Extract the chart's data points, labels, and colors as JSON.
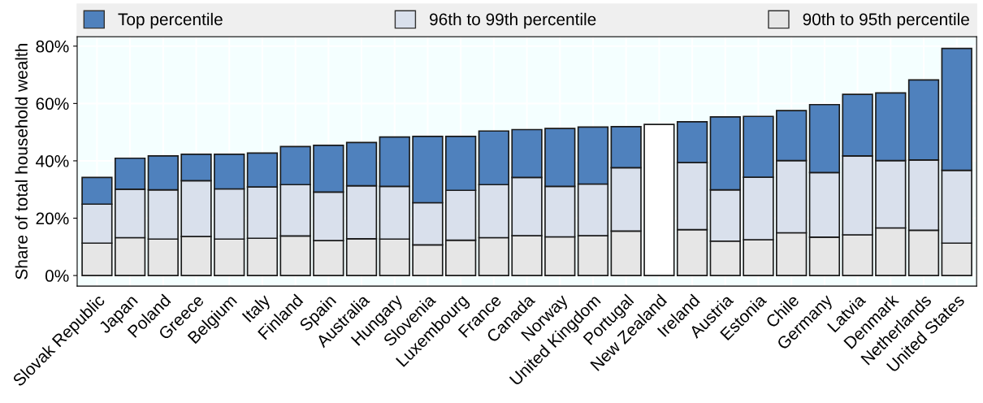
{
  "chart_data": {
    "type": "bar",
    "stacked": true,
    "ylabel": "Share of total household wealth",
    "categories": [
      "Slovak Republic",
      "Japan",
      "Poland",
      "Greece",
      "Belgium",
      "Italy",
      "Finland",
      "Spain",
      "Australia",
      "Hungary",
      "Slovenia",
      "Luxembourg",
      "France",
      "Canada",
      "Norway",
      "United Kingdom",
      "Portugal",
      "New Zealand",
      "Ireland",
      "Austria",
      "Estonia",
      "Chile",
      "Germany",
      "Latvia",
      "Denmark",
      "Netherlands",
      "United States"
    ],
    "series": [
      {
        "name": "90th to 95th percentile",
        "color": "#e6e6e6",
        "values": [
          11.3,
          13.2,
          12.7,
          13.6,
          12.7,
          13.0,
          13.8,
          12.2,
          12.8,
          12.7,
          10.7,
          12.3,
          13.2,
          13.9,
          13.5,
          13.9,
          15.5,
          null,
          16.0,
          12.0,
          12.5,
          14.9,
          13.4,
          14.2,
          16.6,
          15.8,
          11.3
        ]
      },
      {
        "name": "96th to 99th percentile",
        "color": "#d9e0ec",
        "values": [
          13.6,
          16.9,
          17.2,
          19.5,
          17.5,
          17.9,
          17.9,
          16.9,
          18.5,
          18.4,
          14.7,
          17.4,
          18.5,
          20.3,
          17.6,
          18.0,
          22.1,
          null,
          23.4,
          17.9,
          21.8,
          25.2,
          22.5,
          27.5,
          23.5,
          24.5,
          25.4
        ]
      },
      {
        "name": "Top percentile",
        "color": "#4f81bd",
        "values": [
          9.3,
          10.8,
          11.8,
          9.2,
          12.1,
          11.8,
          13.3,
          16.3,
          15.1,
          17.2,
          23.1,
          18.8,
          18.7,
          16.7,
          20.2,
          19.9,
          14.3,
          null,
          14.2,
          25.4,
          21.2,
          17.4,
          23.7,
          21.5,
          23.6,
          27.9,
          42.5
        ]
      },
      {
        "color": "#ffffff",
        "values": [
          null,
          null,
          null,
          null,
          null,
          null,
          null,
          null,
          null,
          null,
          null,
          null,
          null,
          null,
          null,
          null,
          null,
          52.7,
          null,
          null,
          null,
          null,
          null,
          null,
          null,
          null,
          null
        ]
      }
    ],
    "ylim": [
      -3.7,
      83.3
    ],
    "yticks": [
      {
        "value": 0,
        "label": "0%"
      },
      {
        "value": 20,
        "label": "20%"
      },
      {
        "value": 40,
        "label": "40%"
      },
      {
        "value": 60,
        "label": "60%"
      },
      {
        "value": 80,
        "label": "80%"
      }
    ],
    "grid": true,
    "legend": "top"
  }
}
